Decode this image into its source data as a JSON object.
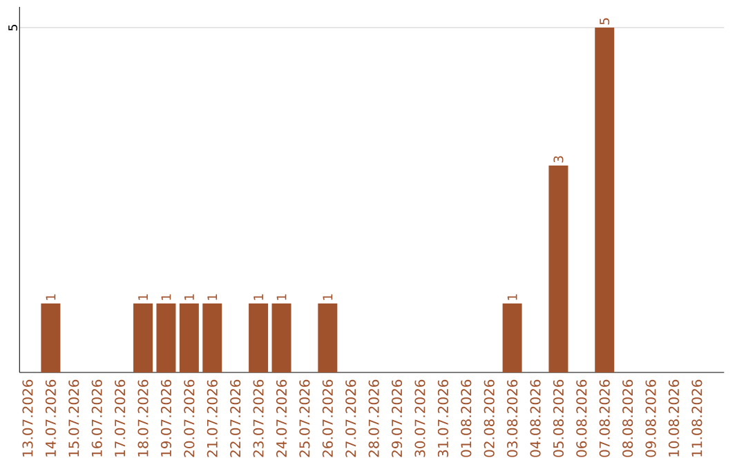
{
  "chart_data": {
    "type": "bar",
    "categories": [
      "13.07.2026",
      "14.07.2026",
      "15.07.2026",
      "16.07.2026",
      "17.07.2026",
      "18.07.2026",
      "19.07.2026",
      "20.07.2026",
      "21.07.2026",
      "22.07.2026",
      "23.07.2026",
      "24.07.2026",
      "25.07.2026",
      "26.07.2026",
      "27.07.2026",
      "28.07.2026",
      "29.07.2026",
      "30.07.2026",
      "31.07.2026",
      "01.08.2026",
      "02.08.2026",
      "03.08.2026",
      "04.08.2026",
      "05.08.2026",
      "06.08.2026",
      "07.08.2026",
      "08.08.2026",
      "09.08.2026",
      "10.08.2026",
      "11.08.2026"
    ],
    "values": [
      null,
      1,
      null,
      null,
      null,
      1,
      1,
      1,
      1,
      null,
      1,
      1,
      null,
      1,
      null,
      null,
      null,
      null,
      null,
      null,
      null,
      1,
      null,
      3,
      null,
      5,
      null,
      null,
      null,
      null
    ],
    "color": "#a0522d",
    "ylim": [
      0,
      5.3
    ],
    "yticks": [
      5
    ],
    "grid": "y",
    "data_labels": true
  }
}
